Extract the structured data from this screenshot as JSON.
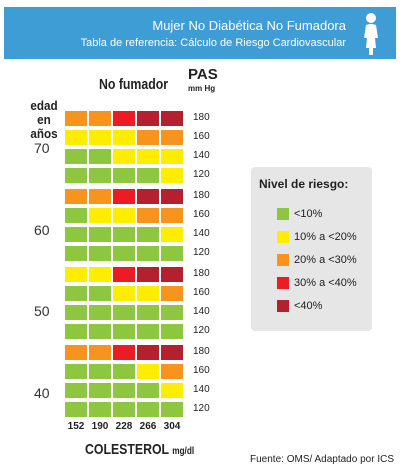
{
  "header": {
    "title": "Mujer No Diabética No Fumadora",
    "subtitle": "Tabla de referencia: Cálculo de Riesgo Cardiovascular",
    "icon": "woman-icon"
  },
  "source": "Fuente:  OMS/ Adaptado por ICS",
  "chart_data": {
    "type": "heatmap",
    "title": "No fumador",
    "row_axis_label": "edad en años",
    "sbp_axis_label": "PAS",
    "sbp_axis_unit": "mm Hg",
    "xlabel": "COLESTEROL",
    "xlabel_unit": "mg/dl",
    "x": [
      "152",
      "190",
      "228",
      "266",
      "304"
    ],
    "sbp": [
      "180",
      "160",
      "140",
      "120"
    ],
    "legend": {
      "title": "Nivel de riesgo:",
      "placement": "right",
      "items": [
        {
          "label": "<10%",
          "level": 1,
          "color": "#8dc63f"
        },
        {
          "label": "10% a <20%",
          "level": 2,
          "color": "#ffed00"
        },
        {
          "label": "20% a <30%",
          "level": 3,
          "color": "#f7941d"
        },
        {
          "label": "30% a <40%",
          "level": 4,
          "color": "#ed1c24"
        },
        {
          "label": "<40%",
          "level": 5,
          "color": "#b5202e"
        }
      ]
    },
    "panels": [
      {
        "age": "70",
        "rows": [
          [
            3,
            3,
            4,
            5,
            5
          ],
          [
            2,
            2,
            2,
            3,
            3
          ],
          [
            1,
            1,
            2,
            2,
            2
          ],
          [
            1,
            1,
            1,
            1,
            2
          ]
        ]
      },
      {
        "age": "60",
        "rows": [
          [
            3,
            3,
            4,
            5,
            5
          ],
          [
            1,
            2,
            2,
            3,
            3
          ],
          [
            1,
            1,
            1,
            1,
            2
          ],
          [
            1,
            1,
            1,
            1,
            1
          ]
        ]
      },
      {
        "age": "50",
        "rows": [
          [
            2,
            2,
            4,
            5,
            5
          ],
          [
            1,
            1,
            2,
            2,
            3
          ],
          [
            1,
            1,
            1,
            1,
            1
          ],
          [
            1,
            1,
            1,
            1,
            1
          ]
        ]
      },
      {
        "age": "40",
        "rows": [
          [
            3,
            3,
            4,
            5,
            5
          ],
          [
            1,
            1,
            1,
            2,
            3
          ],
          [
            1,
            1,
            1,
            1,
            2
          ],
          [
            1,
            1,
            1,
            1,
            1
          ]
        ]
      }
    ]
  }
}
